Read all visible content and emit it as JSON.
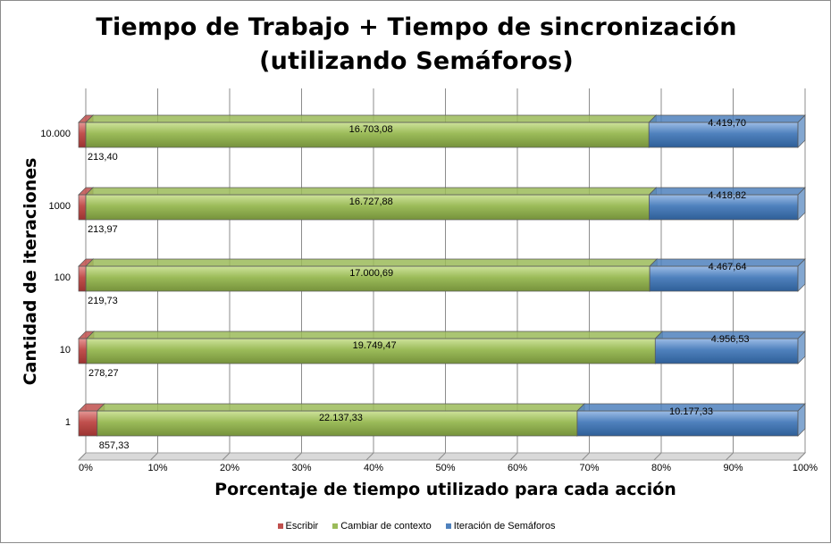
{
  "chart_data": {
    "type": "bar",
    "orientation": "horizontal",
    "stacked": "percent",
    "three_d": true,
    "title_lines": [
      "Tiempo de Trabajo + Tiempo de sincronización",
      "(utilizando Semáforos)"
    ],
    "xlabel": "Porcentaje de tiempo utilizado para cada acción",
    "ylabel": "Cantidad de iteraciones",
    "categories": [
      "1",
      "10",
      "100",
      "1000",
      "10.000"
    ],
    "xlim": [
      0,
      100
    ],
    "x_ticks": [
      "0%",
      "10%",
      "20%",
      "30%",
      "40%",
      "50%",
      "60%",
      "70%",
      "80%",
      "90%",
      "100%"
    ],
    "grid": "vertical",
    "legend_position": "bottom",
    "series": [
      {
        "name": "Escribir",
        "color": "#c0504d",
        "values": [
          857.33,
          278.27,
          219.73,
          213.97,
          213.4
        ],
        "labels": [
          "857,33",
          "278,27",
          "219,73",
          "213,97",
          "213,40"
        ]
      },
      {
        "name": "Cambiar de contexto",
        "color": "#9bbb59",
        "values": [
          22137.33,
          19749.47,
          17000.69,
          16727.88,
          16703.08
        ],
        "labels": [
          "22.137,33",
          "19.749,47",
          "17.000,69",
          "16.727,88",
          "16.703,08"
        ]
      },
      {
        "name": "Iteración de Semáforos",
        "color": "#4f81bd",
        "values": [
          10177.33,
          4956.53,
          4467.64,
          4418.82,
          4419.7
        ],
        "labels": [
          "10.177,33",
          "4.956,53",
          "4.467,64",
          "4.418,82",
          "4.419,70"
        ]
      }
    ]
  }
}
